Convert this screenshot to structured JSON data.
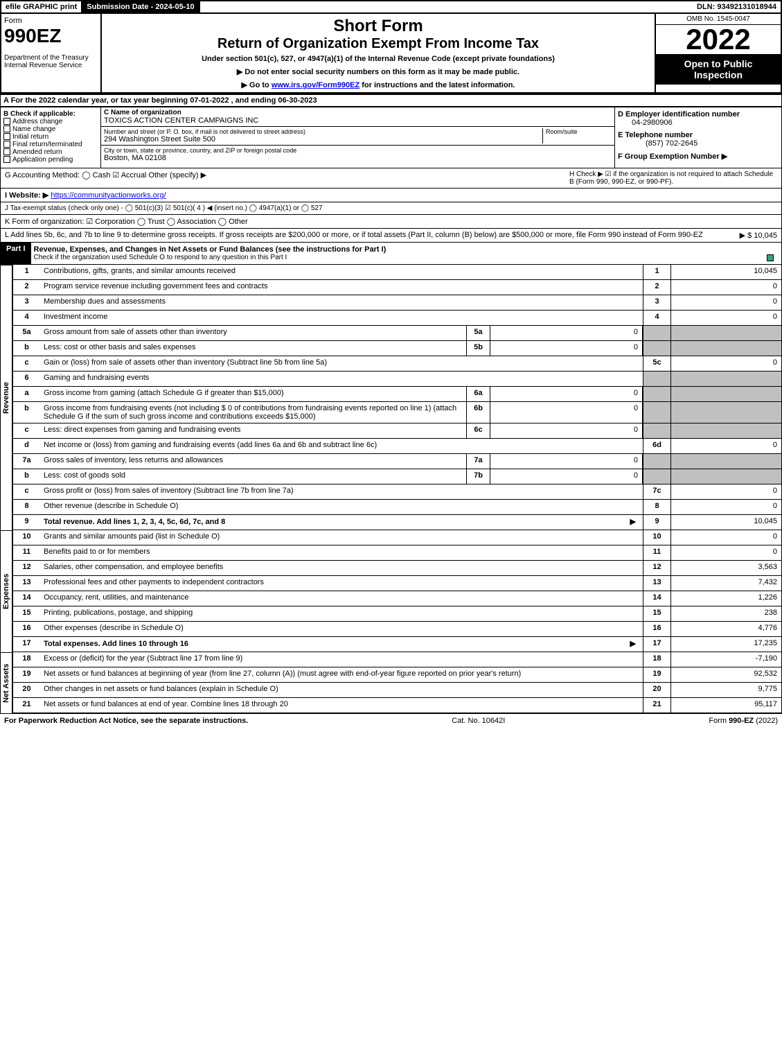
{
  "topbar": {
    "efile": "efile GRAPHIC print",
    "submission": "Submission Date - 2024-05-10",
    "dln": "DLN: 93492131018944"
  },
  "header": {
    "form_word": "Form",
    "form_no": "990EZ",
    "dept": "Department of the Treasury",
    "irs": "Internal Revenue Service",
    "title1": "Short Form",
    "title2": "Return of Organization Exempt From Income Tax",
    "subtitle": "Under section 501(c), 527, or 4947(a)(1) of the Internal Revenue Code (except private foundations)",
    "note1": "▶ Do not enter social security numbers on this form as it may be made public.",
    "note2": "▶ Go to www.irs.gov/Form990EZ for instructions and the latest information.",
    "link": "www.irs.gov/Form990EZ",
    "omb": "OMB No. 1545-0047",
    "year": "2022",
    "open": "Open to Public Inspection"
  },
  "A": "A  For the 2022 calendar year, or tax year beginning 07-01-2022 , and ending 06-30-2023",
  "B": {
    "label": "B  Check if applicable:",
    "opts": [
      "Address change",
      "Name change",
      "Initial return",
      "Final return/terminated",
      "Amended return",
      "Application pending"
    ]
  },
  "C": {
    "name_label": "C Name of organization",
    "name": "TOXICS ACTION CENTER CAMPAIGNS INC",
    "addr_label": "Number and street (or P. O. box, if mail is not delivered to street address)",
    "addr": "294 Washington Street Suite 500",
    "room_label": "Room/suite",
    "city_label": "City or town, state or province, country, and ZIP or foreign postal code",
    "city": "Boston, MA  02108"
  },
  "D": {
    "label": "D Employer identification number",
    "val": "04-2980906"
  },
  "E": {
    "label": "E Telephone number",
    "val": "(857) 702-2645"
  },
  "F": {
    "label": "F Group Exemption Number  ▶"
  },
  "G": "G Accounting Method:   ◯ Cash   ☑ Accrual   Other (specify) ▶",
  "H": "H   Check ▶ ☑ if the organization is not required to attach Schedule B (Form 990, 990-EZ, or 990-PF).",
  "I": {
    "label": "I Website: ▶",
    "url": "https://communityactionworks.org/"
  },
  "J": "J Tax-exempt status (check only one) - ◯ 501(c)(3)  ☑ 501(c)( 4 ) ◀ (insert no.)  ◯ 4947(a)(1) or  ◯ 527",
  "K": "K Form of organization:  ☑ Corporation   ◯ Trust   ◯ Association   ◯ Other",
  "L": {
    "text": "L Add lines 5b, 6c, and 7b to line 9 to determine gross receipts. If gross receipts are $200,000 or more, or if total assets (Part II, column (B) below) are $500,000 or more, file Form 990 instead of Form 990-EZ",
    "val": "▶ $ 10,045"
  },
  "part1": {
    "title": "Part I",
    "heading": "Revenue, Expenses, and Changes in Net Assets or Fund Balances (see the instructions for Part I)",
    "sub": "Check if the organization used Schedule O to respond to any question in this Part I"
  },
  "lines": {
    "1": {
      "n": "1",
      "t": "Contributions, gifts, grants, and similar amounts received",
      "c": "1",
      "v": "10,045"
    },
    "2": {
      "n": "2",
      "t": "Program service revenue including government fees and contracts",
      "c": "2",
      "v": "0"
    },
    "3": {
      "n": "3",
      "t": "Membership dues and assessments",
      "c": "3",
      "v": "0"
    },
    "4": {
      "n": "4",
      "t": "Investment income",
      "c": "4",
      "v": "0"
    },
    "5a": {
      "n": "5a",
      "t": "Gross amount from sale of assets other than inventory",
      "sc": "5a",
      "sv": "0"
    },
    "5b": {
      "n": "b",
      "t": "Less: cost or other basis and sales expenses",
      "sc": "5b",
      "sv": "0"
    },
    "5c": {
      "n": "c",
      "t": "Gain or (loss) from sale of assets other than inventory (Subtract line 5b from line 5a)",
      "c": "5c",
      "v": "0"
    },
    "6": {
      "n": "6",
      "t": "Gaming and fundraising events"
    },
    "6a": {
      "n": "a",
      "t": "Gross income from gaming (attach Schedule G if greater than $15,000)",
      "sc": "6a",
      "sv": "0"
    },
    "6b": {
      "n": "b",
      "t": "Gross income from fundraising events (not including $ 0   of contributions from fundraising events reported on line 1) (attach Schedule G if the sum of such gross income and contributions exceeds $15,000)",
      "sc": "6b",
      "sv": "0"
    },
    "6c": {
      "n": "c",
      "t": "Less: direct expenses from gaming and fundraising events",
      "sc": "6c",
      "sv": "0"
    },
    "6d": {
      "n": "d",
      "t": "Net income or (loss) from gaming and fundraising events (add lines 6a and 6b and subtract line 6c)",
      "c": "6d",
      "v": "0"
    },
    "7a": {
      "n": "7a",
      "t": "Gross sales of inventory, less returns and allowances",
      "sc": "7a",
      "sv": "0"
    },
    "7b": {
      "n": "b",
      "t": "Less: cost of goods sold",
      "sc": "7b",
      "sv": "0"
    },
    "7c": {
      "n": "c",
      "t": "Gross profit or (loss) from sales of inventory (Subtract line 7b from line 7a)",
      "c": "7c",
      "v": "0"
    },
    "8": {
      "n": "8",
      "t": "Other revenue (describe in Schedule O)",
      "c": "8",
      "v": "0"
    },
    "9": {
      "n": "9",
      "t": "Total revenue. Add lines 1, 2, 3, 4, 5c, 6d, 7c, and 8",
      "c": "9",
      "v": "10,045",
      "arrow": "▶"
    },
    "10": {
      "n": "10",
      "t": "Grants and similar amounts paid (list in Schedule O)",
      "c": "10",
      "v": "0"
    },
    "11": {
      "n": "11",
      "t": "Benefits paid to or for members",
      "c": "11",
      "v": "0"
    },
    "12": {
      "n": "12",
      "t": "Salaries, other compensation, and employee benefits",
      "c": "12",
      "v": "3,563"
    },
    "13": {
      "n": "13",
      "t": "Professional fees and other payments to independent contractors",
      "c": "13",
      "v": "7,432"
    },
    "14": {
      "n": "14",
      "t": "Occupancy, rent, utilities, and maintenance",
      "c": "14",
      "v": "1,226"
    },
    "15": {
      "n": "15",
      "t": "Printing, publications, postage, and shipping",
      "c": "15",
      "v": "238"
    },
    "16": {
      "n": "16",
      "t": "Other expenses (describe in Schedule O)",
      "c": "16",
      "v": "4,776"
    },
    "17": {
      "n": "17",
      "t": "Total expenses. Add lines 10 through 16",
      "c": "17",
      "v": "17,235",
      "arrow": "▶"
    },
    "18": {
      "n": "18",
      "t": "Excess or (deficit) for the year (Subtract line 17 from line 9)",
      "c": "18",
      "v": "-7,190"
    },
    "19": {
      "n": "19",
      "t": "Net assets or fund balances at beginning of year (from line 27, column (A)) (must agree with end-of-year figure reported on prior year's return)",
      "c": "19",
      "v": "92,532"
    },
    "20": {
      "n": "20",
      "t": "Other changes in net assets or fund balances (explain in Schedule O)",
      "c": "20",
      "v": "9,775"
    },
    "21": {
      "n": "21",
      "t": "Net assets or fund balances at end of year. Combine lines 18 through 20",
      "c": "21",
      "v": "95,117"
    }
  },
  "vert": {
    "revenue": "Revenue",
    "expenses": "Expenses",
    "netassets": "Net Assets"
  },
  "footer": {
    "left": "For Paperwork Reduction Act Notice, see the separate instructions.",
    "mid": "Cat. No. 10642I",
    "right": "Form 990-EZ (2022)"
  },
  "colors": {
    "black": "#000000",
    "grey": "#c0c0c0",
    "check": "#22aa77",
    "link": "#0000ff"
  }
}
